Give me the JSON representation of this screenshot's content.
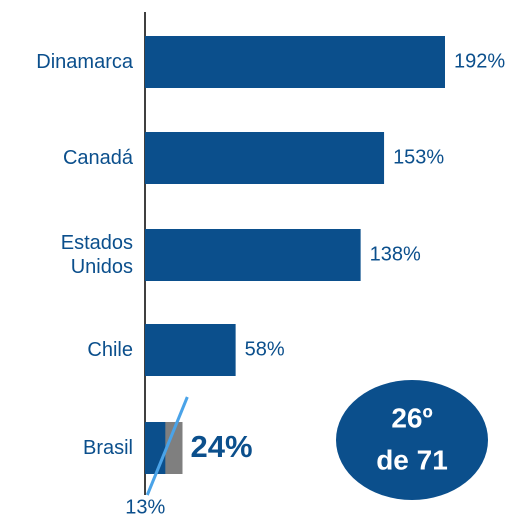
{
  "chart_data": {
    "type": "bar",
    "orientation": "horizontal",
    "categories": [
      "Dinamarca",
      "Canadá",
      "Estados Unidos",
      "Chile",
      "Brasil"
    ],
    "values": [
      192,
      153,
      138,
      58,
      13
    ],
    "value_labels": [
      "192%",
      "153%",
      "138%",
      "58%",
      "13%"
    ],
    "color": "#0b4f8c",
    "highlight": {
      "value": 24,
      "label": "24%",
      "color": "#7f7f7f"
    },
    "badge": [
      "26º",
      "de 71"
    ]
  }
}
